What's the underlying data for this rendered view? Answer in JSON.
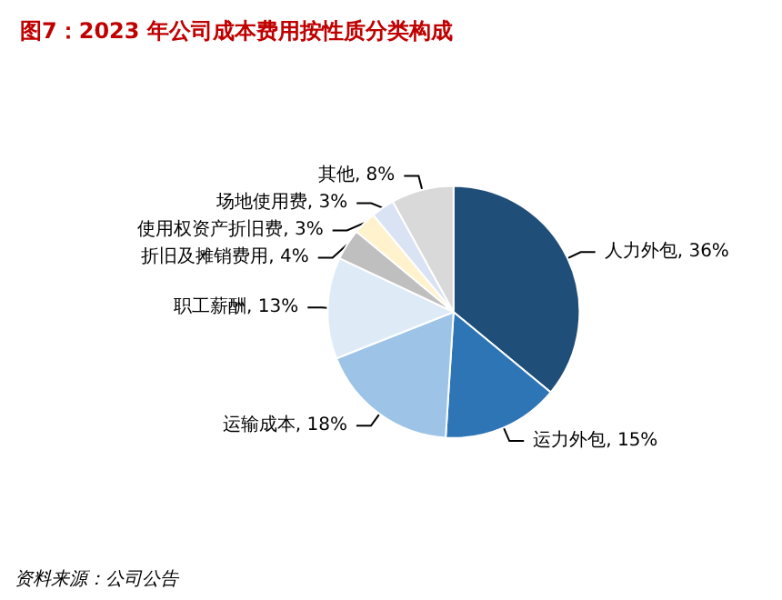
{
  "chart_data": {
    "type": "pie",
    "title": "图7：2023 年公司成本费用按性质分类构成",
    "categories": [
      "人力外包",
      "运力外包",
      "运输成本",
      "职工薪酬",
      "折旧及摊销费用",
      "使用权资产折旧费",
      "场地使用费",
      "其他"
    ],
    "values": [
      36,
      15,
      18,
      13,
      4,
      3,
      3,
      8
    ],
    "value_labels": [
      "36%",
      "15%",
      "18%",
      "13%",
      "4%",
      "3%",
      "3%",
      "8%"
    ],
    "colors": [
      "#1f4e79",
      "#2e75b6",
      "#9dc3e6",
      "#deebf7",
      "#bfbfbf",
      "#fff2cc",
      "#dae3f3",
      "#d9d9d9"
    ],
    "legend": false,
    "annotations": [
      "资料来源：公司公告"
    ]
  }
}
